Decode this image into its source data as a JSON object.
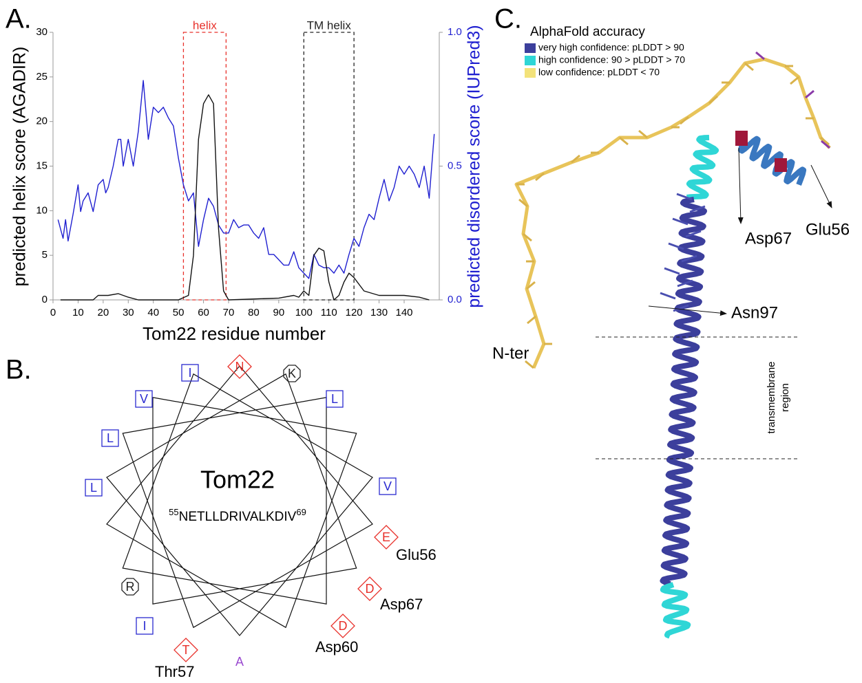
{
  "panel_labels": [
    "A.",
    "B.",
    "C."
  ],
  "chart_data": {
    "type": "line",
    "x_label": "Tom22 residue number",
    "y_label": "predicted helix score (AGADIR)",
    "y2_label": "predicted disordered score (IUPred3)",
    "y2_color": "#1f1fd0",
    "xlim": [
      0,
      154
    ],
    "xticks": [
      0,
      10,
      20,
      30,
      40,
      50,
      60,
      70,
      80,
      90,
      100,
      110,
      120,
      130,
      140
    ],
    "ylim": [
      0,
      30
    ],
    "yticks": [
      0,
      5,
      10,
      15,
      20,
      25,
      30
    ],
    "y2lim": [
      0,
      1
    ],
    "y2ticks": [
      {
        "value": 0,
        "label": "0.0"
      },
      {
        "value": 0.5,
        "label": "0.5"
      },
      {
        "value": 1,
        "label": "1.0"
      }
    ],
    "regions": [
      {
        "label": "helix",
        "start": 52,
        "end": 69,
        "color": "#e8302a"
      },
      {
        "label": "TM helix",
        "start": 100,
        "end": 120,
        "color": "#222222"
      }
    ],
    "series": [
      {
        "color": "#1f1fd0",
        "axis": "y2",
        "x": [
          2,
          4,
          5,
          6,
          8,
          10,
          11,
          12,
          14,
          16,
          18,
          20,
          21,
          22,
          24,
          26,
          27,
          28,
          30,
          32,
          34,
          36,
          38,
          40,
          42,
          44,
          46,
          48,
          50,
          52,
          54,
          56,
          58,
          60,
          62,
          64,
          66,
          68,
          70,
          72,
          74,
          76,
          78,
          80,
          82,
          84,
          86,
          88,
          90,
          92,
          94,
          96,
          98,
          100,
          102,
          104,
          106,
          108,
          110,
          112,
          114,
          116,
          118,
          120,
          122,
          124,
          126,
          128,
          130,
          132,
          134,
          136,
          138,
          140,
          142,
          144,
          146,
          148,
          150,
          152
        ],
        "values": [
          0.3,
          0.23,
          0.3,
          0.22,
          0.32,
          0.43,
          0.33,
          0.37,
          0.4,
          0.33,
          0.43,
          0.45,
          0.4,
          0.42,
          0.5,
          0.6,
          0.6,
          0.5,
          0.6,
          0.5,
          0.63,
          0.82,
          0.6,
          0.72,
          0.7,
          0.72,
          0.68,
          0.65,
          0.53,
          0.43,
          0.37,
          0.4,
          0.2,
          0.3,
          0.38,
          0.35,
          0.28,
          0.25,
          0.25,
          0.3,
          0.27,
          0.28,
          0.28,
          0.25,
          0.23,
          0.27,
          0.17,
          0.17,
          0.15,
          0.13,
          0.13,
          0.18,
          0.12,
          0.1,
          0.08,
          0.17,
          0.13,
          0.12,
          0.12,
          0.1,
          0.13,
          0.1,
          0.17,
          0.23,
          0.2,
          0.27,
          0.32,
          0.3,
          0.38,
          0.45,
          0.37,
          0.42,
          0.5,
          0.47,
          0.5,
          0.47,
          0.42,
          0.5,
          0.38,
          0.62
        ]
      },
      {
        "color": "#111111",
        "axis": "y",
        "x": [
          3,
          10,
          16,
          18,
          22,
          26,
          30,
          34,
          50,
          54,
          56,
          58,
          60,
          62,
          64,
          66,
          68,
          70,
          90,
          96,
          98,
          100,
          102,
          104,
          106,
          108,
          110,
          112,
          114,
          116,
          118,
          120,
          124,
          130,
          140,
          146,
          150
        ],
        "values": [
          0,
          0,
          0,
          0.5,
          0.5,
          0.7,
          0.3,
          0,
          0,
          0.5,
          5,
          18,
          22,
          23,
          22,
          8,
          1,
          0,
          0.2,
          0.5,
          0.3,
          1,
          0.5,
          5,
          5.8,
          5.5,
          2,
          0,
          0.5,
          2,
          3,
          2.5,
          1,
          0.5,
          0.5,
          0.3,
          0
        ]
      }
    ]
  },
  "helical_wheel": {
    "title": "Tom22",
    "sequence_start": "55",
    "sequence": "NETLLDRIVALKDIV",
    "sequence_end": "69",
    "residues": [
      {
        "letter": "N",
        "shape": "diamond",
        "color": "#e8302a"
      },
      {
        "letter": "K",
        "shape": "octagon",
        "color": "#222222"
      },
      {
        "letter": "L",
        "shape": "square",
        "color": "#2a2ad0"
      },
      {
        "letter": "V",
        "shape": "square",
        "color": "#2a2ad0"
      },
      {
        "letter": "E",
        "shape": "diamond",
        "color": "#e8302a"
      },
      {
        "letter": "D",
        "shape": "diamond",
        "color": "#e8302a"
      },
      {
        "letter": "D",
        "shape": "diamond",
        "color": "#e8302a"
      },
      {
        "letter": "A",
        "shape": "none",
        "color": "#9a4ad0"
      },
      {
        "letter": "T",
        "shape": "diamond",
        "color": "#e8302a"
      },
      {
        "letter": "I",
        "shape": "square",
        "color": "#2a2ad0"
      },
      {
        "letter": "R",
        "shape": "octagon",
        "color": "#222222"
      },
      {
        "letter": "L",
        "shape": "square",
        "color": "#2a2ad0"
      },
      {
        "letter": "L",
        "shape": "square",
        "color": "#2a2ad0"
      },
      {
        "letter": "V",
        "shape": "square",
        "color": "#2a2ad0"
      },
      {
        "letter": "I",
        "shape": "square",
        "color": "#2a2ad0"
      }
    ],
    "annotations": [
      "Glu56",
      "Asp67",
      "Asp60",
      "Thr57"
    ]
  },
  "structure": {
    "legend_title": "AlphaFold accuracy",
    "legend": [
      {
        "label": "very high confidence: pLDDT > 90",
        "color": "#3c3f9c"
      },
      {
        "label": "high confidence: 90 > pLDDT > 70",
        "color": "#2fd6d6"
      },
      {
        "label": "low confidence: pLDDT < 70",
        "color": "#f3e27a"
      }
    ],
    "labels": [
      "Asp67",
      "Glu56",
      "Asn97",
      "N-ter"
    ],
    "region_label": [
      "transmembrane",
      "region"
    ]
  }
}
